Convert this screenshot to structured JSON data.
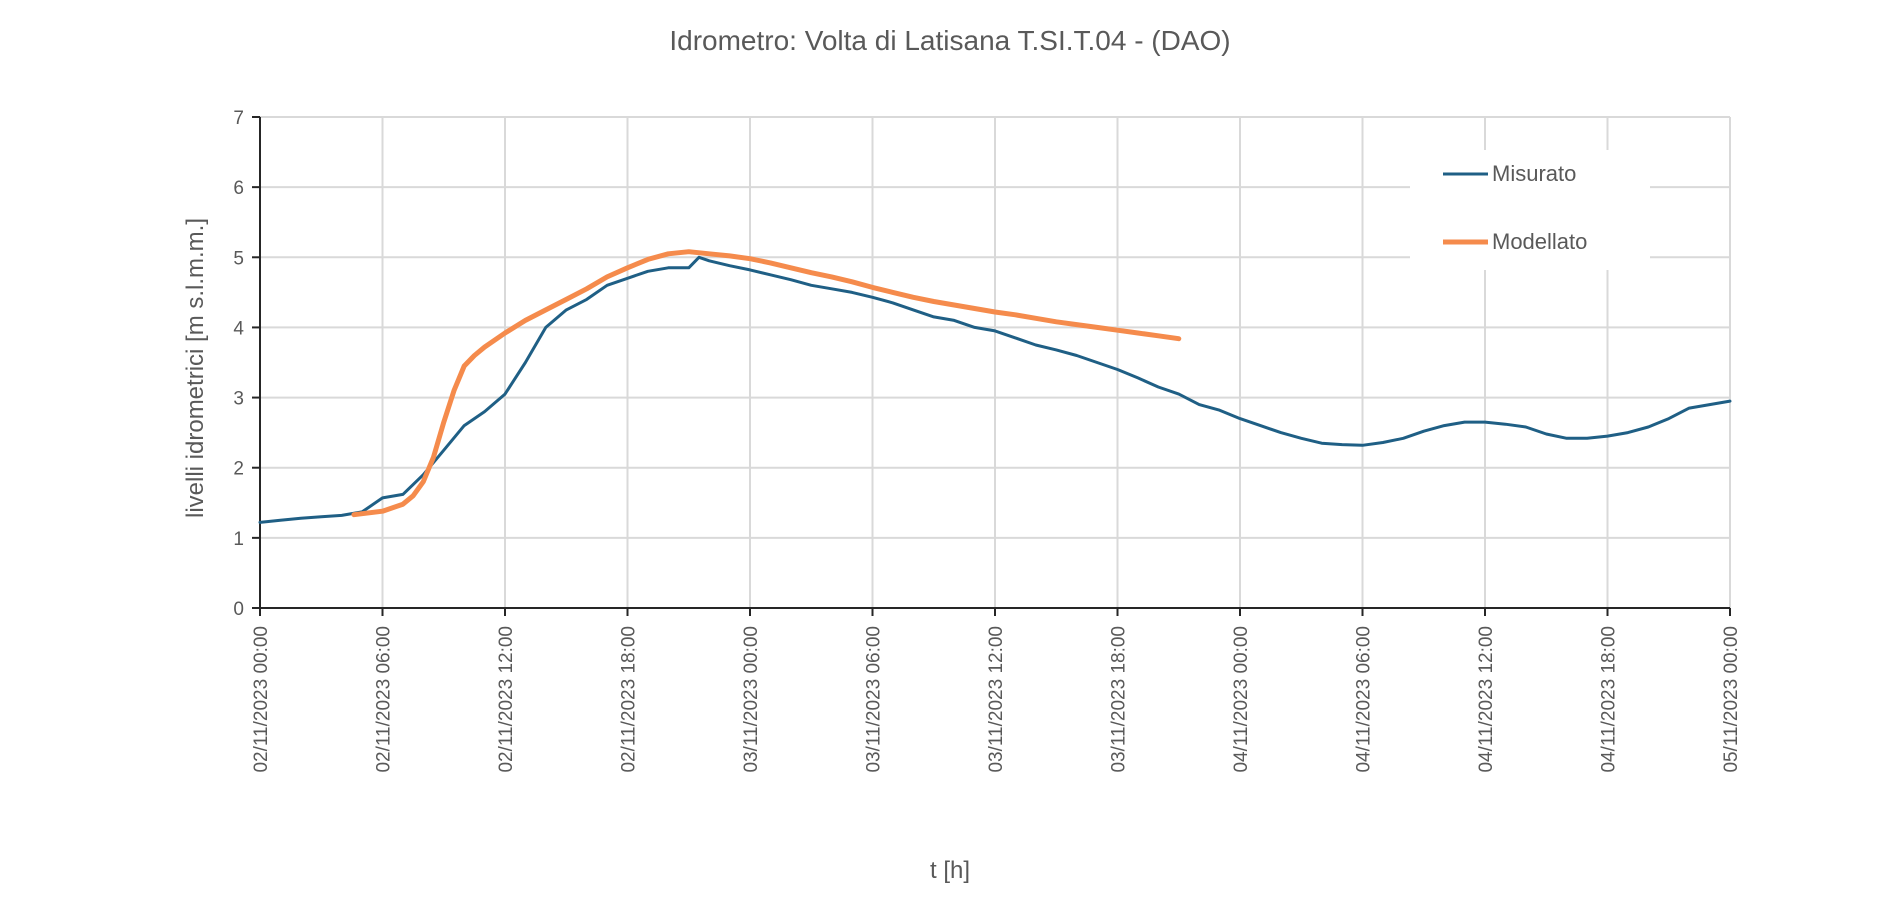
{
  "chart_data": {
    "type": "line",
    "title": "Idrometro:  Volta di Latisana T.SI.T.04 - (DAO)",
    "xlabel": "t [h]",
    "ylabel": "livelli idrometrici [m s.l.m.m.]",
    "x_unit": "hours from 02/11/2023 00:00",
    "xlim": [
      0,
      72
    ],
    "ylim": [
      0,
      7
    ],
    "yticks": [
      "0",
      "1",
      "2",
      "3",
      "4",
      "5",
      "6",
      "7"
    ],
    "xticks": [
      {
        "t": 0,
        "label": "02/11/2023 00:00"
      },
      {
        "t": 6,
        "label": "02/11/2023 06:00"
      },
      {
        "t": 12,
        "label": "02/11/2023 12:00"
      },
      {
        "t": 18,
        "label": "02/11/2023 18:00"
      },
      {
        "t": 24,
        "label": "03/11/2023 00:00"
      },
      {
        "t": 30,
        "label": "03/11/2023 06:00"
      },
      {
        "t": 36,
        "label": "03/11/2023 12:00"
      },
      {
        "t": 42,
        "label": "03/11/2023 18:00"
      },
      {
        "t": 48,
        "label": "04/11/2023 00:00"
      },
      {
        "t": 54,
        "label": "04/11/2023 06:00"
      },
      {
        "t": 60,
        "label": "04/11/2023 12:00"
      },
      {
        "t": 66,
        "label": "04/11/2023 18:00"
      },
      {
        "t": 72,
        "label": "05/11/2023 00:00"
      }
    ],
    "grid": true,
    "legend_position": "top-right",
    "series": [
      {
        "name": "Misurato",
        "color": "#1f5f85",
        "x": [
          0,
          1,
          2,
          3,
          4,
          5,
          6,
          7,
          8,
          9,
          10,
          11,
          12,
          13,
          14,
          15,
          16,
          17,
          18,
          19,
          20,
          21,
          21.5,
          22,
          23,
          24,
          25,
          26,
          27,
          28,
          29,
          30,
          31,
          32,
          33,
          34,
          35,
          36,
          37,
          38,
          39,
          40,
          41,
          42,
          43,
          44,
          45,
          46,
          47,
          48,
          49,
          50,
          51,
          52,
          53,
          54,
          55,
          56,
          57,
          58,
          59,
          60,
          61,
          62,
          63,
          64,
          65,
          66,
          67,
          68,
          69,
          70,
          71,
          72
        ],
        "y": [
          1.22,
          1.25,
          1.28,
          1.3,
          1.32,
          1.37,
          1.57,
          1.62,
          1.9,
          2.25,
          2.6,
          2.8,
          3.05,
          3.5,
          4.0,
          4.25,
          4.4,
          4.6,
          4.7,
          4.8,
          4.85,
          4.85,
          5.0,
          4.95,
          4.88,
          4.82,
          4.75,
          4.68,
          4.6,
          4.55,
          4.5,
          4.43,
          4.35,
          4.25,
          4.15,
          4.1,
          4.0,
          3.95,
          3.85,
          3.75,
          3.68,
          3.6,
          3.5,
          3.4,
          3.28,
          3.15,
          3.05,
          2.9,
          2.82,
          2.7,
          2.6,
          2.5,
          2.42,
          2.35,
          2.33,
          2.32,
          2.36,
          2.42,
          2.52,
          2.6,
          2.65,
          2.65,
          2.62,
          2.58,
          2.48,
          2.42,
          2.42,
          2.45,
          2.5,
          2.58,
          2.7,
          2.85,
          2.9,
          2.95
        ]
      },
      {
        "name": "Modellato",
        "color": "#f58b4c",
        "x": [
          4.6,
          6,
          7,
          7.5,
          8,
          8.5,
          9,
          9.5,
          10,
          10.5,
          11,
          12,
          13,
          14,
          15,
          16,
          17,
          18,
          19,
          20,
          21,
          22,
          23,
          24,
          25,
          26,
          27,
          28,
          29,
          30,
          31,
          32,
          33,
          34,
          35,
          36,
          37,
          38,
          39,
          40,
          41,
          42,
          43,
          44,
          45
        ],
        "y": [
          1.33,
          1.38,
          1.48,
          1.6,
          1.8,
          2.15,
          2.65,
          3.1,
          3.45,
          3.6,
          3.72,
          3.92,
          4.1,
          4.25,
          4.4,
          4.55,
          4.72,
          4.85,
          4.97,
          5.05,
          5.08,
          5.05,
          5.02,
          4.98,
          4.92,
          4.85,
          4.78,
          4.72,
          4.65,
          4.57,
          4.5,
          4.43,
          4.37,
          4.32,
          4.27,
          4.22,
          4.18,
          4.13,
          4.08,
          4.04,
          4.0,
          3.96,
          3.92,
          3.88,
          3.84
        ]
      }
    ]
  }
}
